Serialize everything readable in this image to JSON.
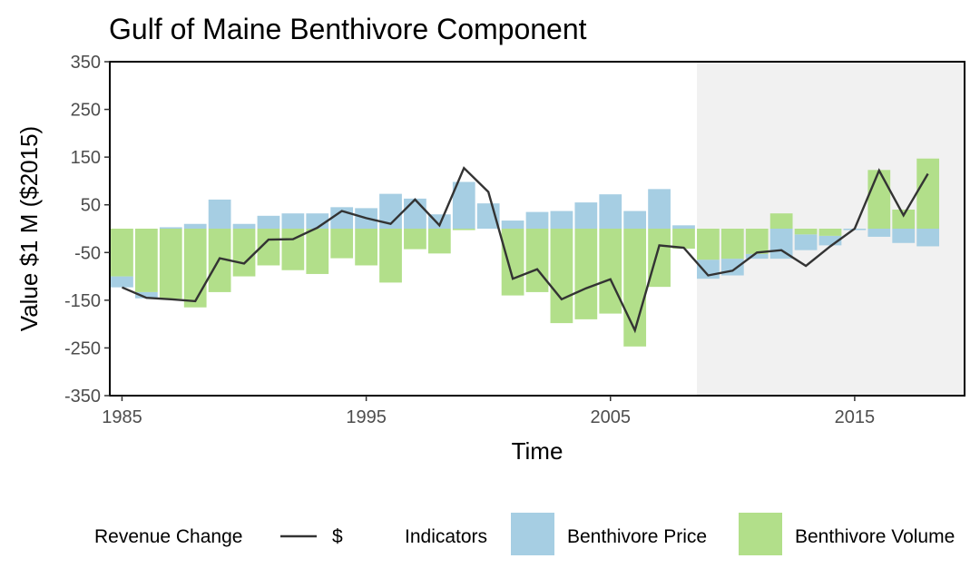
{
  "chart_data": {
    "type": "bar",
    "title": "Gulf of Maine Benthivore Component",
    "xlabel": "Time",
    "ylabel": "Value $1 M ($2015)",
    "xlim": [
      1984.5,
      2019.5
    ],
    "ylim": [
      -350,
      350
    ],
    "xticks": [
      1985,
      1995,
      2005,
      2015
    ],
    "yticks": [
      -350,
      -250,
      -150,
      -50,
      50,
      150,
      250,
      350
    ],
    "shaded_region": {
      "from": 2009,
      "to": 2019.5,
      "color": "#f1f1f1"
    },
    "grid": false,
    "legend_position": "bottom",
    "x": [
      1985,
      1986,
      1987,
      1988,
      1989,
      1990,
      1991,
      1992,
      1993,
      1994,
      1995,
      1996,
      1997,
      1998,
      1999,
      2000,
      2001,
      2002,
      2003,
      2004,
      2005,
      2006,
      2007,
      2008,
      2009,
      2010,
      2011,
      2012,
      2013,
      2014,
      2015,
      2016,
      2017,
      2018
    ],
    "series": [
      {
        "name": "Benthivore Price",
        "kind": "bar",
        "color": "#a6cee3",
        "values": [
          -23,
          -13,
          3,
          10,
          61,
          10,
          27,
          32,
          32,
          45,
          43,
          73,
          63,
          30,
          98,
          53,
          17,
          35,
          37,
          55,
          72,
          37,
          83,
          7,
          -40,
          -35,
          -10,
          -63,
          -33,
          -20,
          -3,
          -17,
          -30,
          -37
        ]
      },
      {
        "name": "Benthivore Volume",
        "kind": "bar",
        "color": "#b2df8a",
        "values": [
          -100,
          -133,
          -147,
          -165,
          -133,
          -100,
          -77,
          -87,
          -95,
          -62,
          -77,
          -113,
          -43,
          -52,
          -3,
          0,
          -140,
          -133,
          -198,
          -190,
          -178,
          -247,
          -122,
          -42,
          -65,
          -63,
          -53,
          32,
          -12,
          -15,
          0,
          123,
          40,
          147
        ]
      },
      {
        "name": "$",
        "kind": "line",
        "legend_group": "Revenue Change",
        "color": "#333333",
        "values": [
          -123,
          -145,
          -148,
          -152,
          -62,
          -73,
          -23,
          -22,
          2,
          37,
          22,
          10,
          61,
          7,
          127,
          77,
          -105,
          -85,
          -148,
          -125,
          -106,
          -213,
          -35,
          -40,
          -98,
          -88,
          -50,
          -45,
          -78,
          -37,
          0,
          122,
          28,
          115
        ]
      }
    ]
  },
  "legend": {
    "line_group_label": "Revenue Change",
    "line_label": "$",
    "indicators_label": "Indicators",
    "price_label": "Benthivore Price",
    "volume_label": "Benthivore Volume"
  }
}
